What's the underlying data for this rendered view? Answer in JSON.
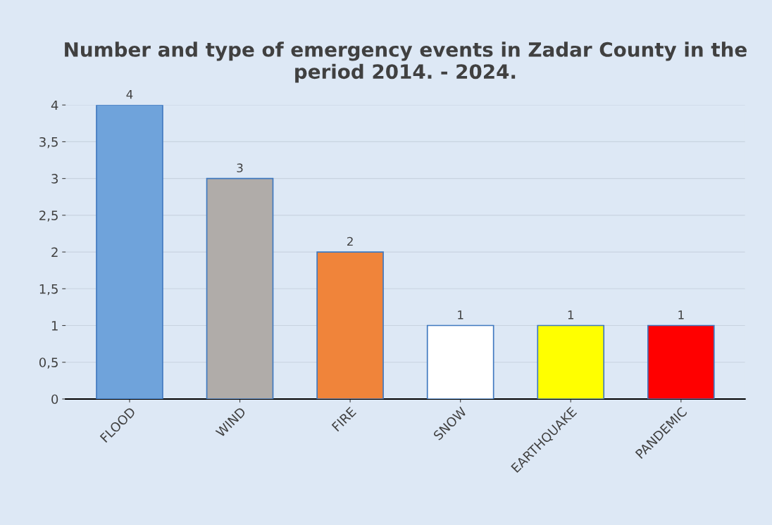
{
  "chart_data": {
    "type": "bar",
    "title": "Number and type of emergency events in Zadar County in the period 2014. - 2024.",
    "categories": [
      "FLOOD",
      "WIND",
      "FIRE",
      "SNOW",
      "EARTHQUAKE",
      "PANDEMIC"
    ],
    "values": [
      4,
      3,
      2,
      1,
      1,
      1
    ],
    "colors": [
      "#6fa3db",
      "#b0aca9",
      "#f0843a",
      "#ffffff",
      "#ffff00",
      "#ff0000"
    ],
    "ylim": [
      0,
      4
    ],
    "yticks": [
      0,
      {
        "value": 0.5,
        "label": "0,5"
      },
      1,
      {
        "value": 1.5,
        "label": "1,5"
      },
      2,
      {
        "value": 2.5,
        "label": "2,5"
      },
      3,
      {
        "value": 3.5,
        "label": "3,5"
      },
      4
    ],
    "grid": "y",
    "data_labels": true
  }
}
